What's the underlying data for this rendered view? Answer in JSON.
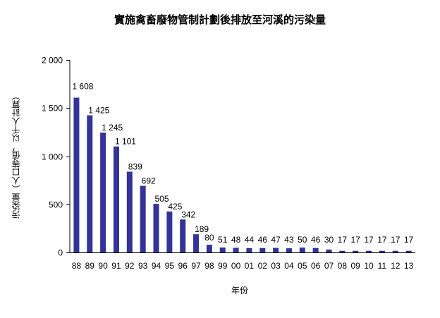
{
  "chart_data": {
    "type": "bar",
    "title": "實施禽畜廢物管制計劃後排放至河溪的污染量",
    "xlabel": "年份",
    "ylabel": "污染量（人口等值，以千人計算）",
    "categories": [
      "88",
      "89",
      "90",
      "91",
      "92",
      "93",
      "94",
      "95",
      "96",
      "97",
      "98",
      "99",
      "00",
      "01",
      "02",
      "03",
      "04",
      "05",
      "06",
      "07",
      "08",
      "09",
      "10",
      "11",
      "12",
      "13"
    ],
    "values": [
      1608,
      1425,
      1245,
      1101,
      839,
      692,
      505,
      425,
      342,
      189,
      80,
      51,
      48,
      44,
      46,
      47,
      43,
      50,
      46,
      30,
      17,
      17,
      17,
      17,
      17,
      17
    ],
    "data_labels": [
      "1 608",
      "1 425",
      "1 245",
      "1 101",
      "839",
      "692",
      "505",
      "425",
      "342",
      "189",
      "80",
      "51",
      "48",
      "44",
      "46",
      "47",
      "43",
      "50",
      "46",
      "30",
      "17",
      "17",
      "17",
      "17",
      "17",
      "17"
    ],
    "yticks": [
      "0",
      "500",
      "1 000",
      "1 500",
      "2 000"
    ],
    "ytick_values": [
      0,
      500,
      1000,
      1500,
      2000
    ],
    "ylim": [
      0,
      2000
    ],
    "grid": false,
    "legend": null,
    "bar_color": "#333399"
  }
}
